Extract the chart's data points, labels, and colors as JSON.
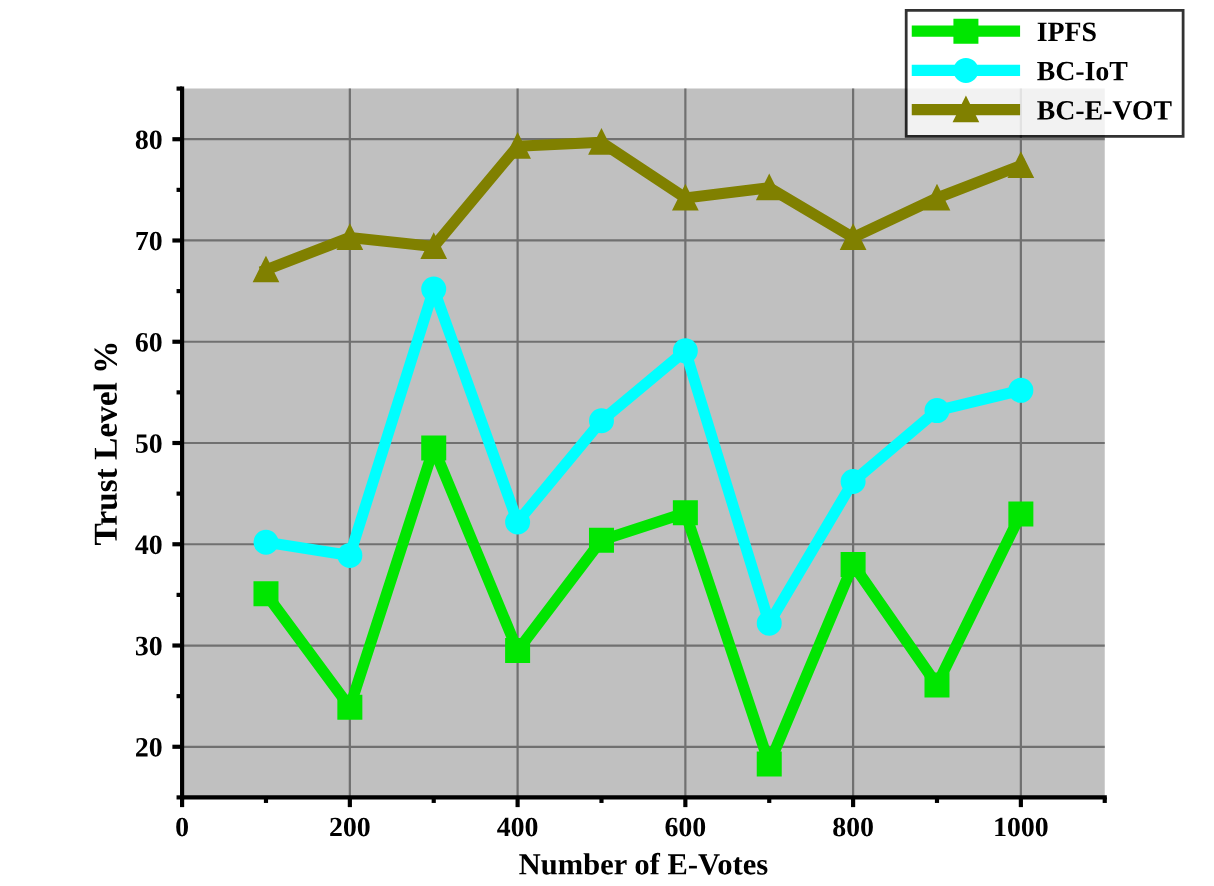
{
  "chart_data": {
    "type": "line",
    "xlabel": "Number of E-Votes",
    "ylabel": "Trust Level %",
    "x": [
      100,
      200,
      300,
      400,
      500,
      600,
      700,
      800,
      900,
      1000
    ],
    "series": [
      {
        "name": "IPFS",
        "color": "#00e600",
        "marker": "square",
        "values": [
          35.1,
          23.9,
          49.5,
          29.5,
          40.4,
          43.1,
          18.3,
          38.0,
          26.1,
          43.0
        ]
      },
      {
        "name": "BC-IoT",
        "color": "#00ffff",
        "marker": "circle",
        "values": [
          40.2,
          38.9,
          65.2,
          42.2,
          52.2,
          59.1,
          32.2,
          46.2,
          53.2,
          55.2
        ]
      },
      {
        "name": "BC-E-VOT",
        "color": "#808000",
        "marker": "triangle",
        "values": [
          67.1,
          70.3,
          69.4,
          79.3,
          79.7,
          74.2,
          75.2,
          70.3,
          74.2,
          77.4
        ]
      }
    ],
    "xlim": [
      0,
      1100
    ],
    "xticks": [
      0,
      200,
      400,
      600,
      800,
      1000
    ],
    "ylim": [
      15,
      85
    ],
    "yticks": [
      20,
      30,
      40,
      50,
      60,
      70,
      80
    ],
    "grid": true,
    "legend": "top right",
    "line_style": "solid"
  }
}
